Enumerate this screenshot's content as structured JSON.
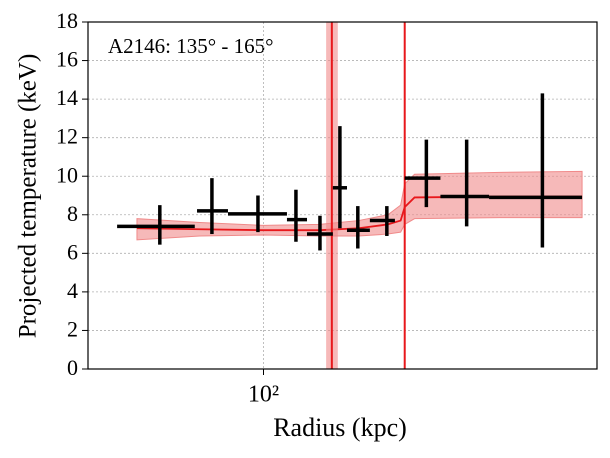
{
  "chart_data": {
    "type": "errorbar",
    "annotation": "A2146: 135° - 165°",
    "xlabel": "Radius (kpc)",
    "ylabel": "Projected temperature (keV)",
    "xscale": "log",
    "xlim": [
      42,
      520
    ],
    "xticks": [
      {
        "value": 100,
        "label": "10²"
      }
    ],
    "ylim": [
      0,
      18
    ],
    "yticks": [
      0,
      2,
      4,
      6,
      8,
      10,
      12,
      14,
      16,
      18
    ],
    "grid": true,
    "series": [
      {
        "color": "#000000",
        "x": [
          59.9,
          77.5,
          97.3,
          117.4,
          132.2,
          145.9,
          159.4,
          184,
          223.7,
          273,
          397
        ],
        "x_left": [
          48.5,
          72,
          83.9,
          112.3,
          124,
          140.9,
          151.1,
          169.2,
          201,
          239.8,
          305
        ],
        "x_right": [
          71.2,
          83.9,
          112.3,
          124,
          140.9,
          151.1,
          169.2,
          191.5,
          239.8,
          305,
          483
        ],
        "values": [
          7.4,
          8.2,
          8.05,
          7.75,
          7.0,
          9.4,
          7.2,
          7.7,
          9.9,
          8.95,
          8.9
        ],
        "yerr_low": [
          0.95,
          1.2,
          0.95,
          1.15,
          0.85,
          2.1,
          0.95,
          0.8,
          1.5,
          1.55,
          2.6
        ],
        "yerr_high": [
          1.1,
          1.7,
          0.95,
          1.55,
          0.95,
          3.2,
          1.25,
          0.75,
          2.0,
          2.95,
          5.4
        ]
      }
    ],
    "model": {
      "color": "#e8181c",
      "band_color": "#f08a8a",
      "x": [
        53.5,
        73,
        100,
        132,
        160,
        185,
        197,
        201,
        211,
        322,
        483
      ],
      "values": [
        7.3,
        7.25,
        7.2,
        7.2,
        7.3,
        7.5,
        7.7,
        8.4,
        8.9,
        8.95,
        8.95
      ],
      "lower": [
        6.7,
        6.9,
        6.95,
        6.9,
        6.9,
        7.0,
        7.1,
        7.5,
        7.8,
        7.85,
        7.85
      ],
      "upper": [
        7.8,
        7.6,
        7.45,
        7.5,
        7.7,
        8.0,
        8.5,
        9.6,
        10.1,
        10.2,
        10.25
      ]
    },
    "vlines": [
      {
        "x": 140.2,
        "band": [
          136.3,
          144.4
        ],
        "color": "#e8181c"
      },
      {
        "x": 201,
        "color": "#e8181c"
      }
    ]
  }
}
